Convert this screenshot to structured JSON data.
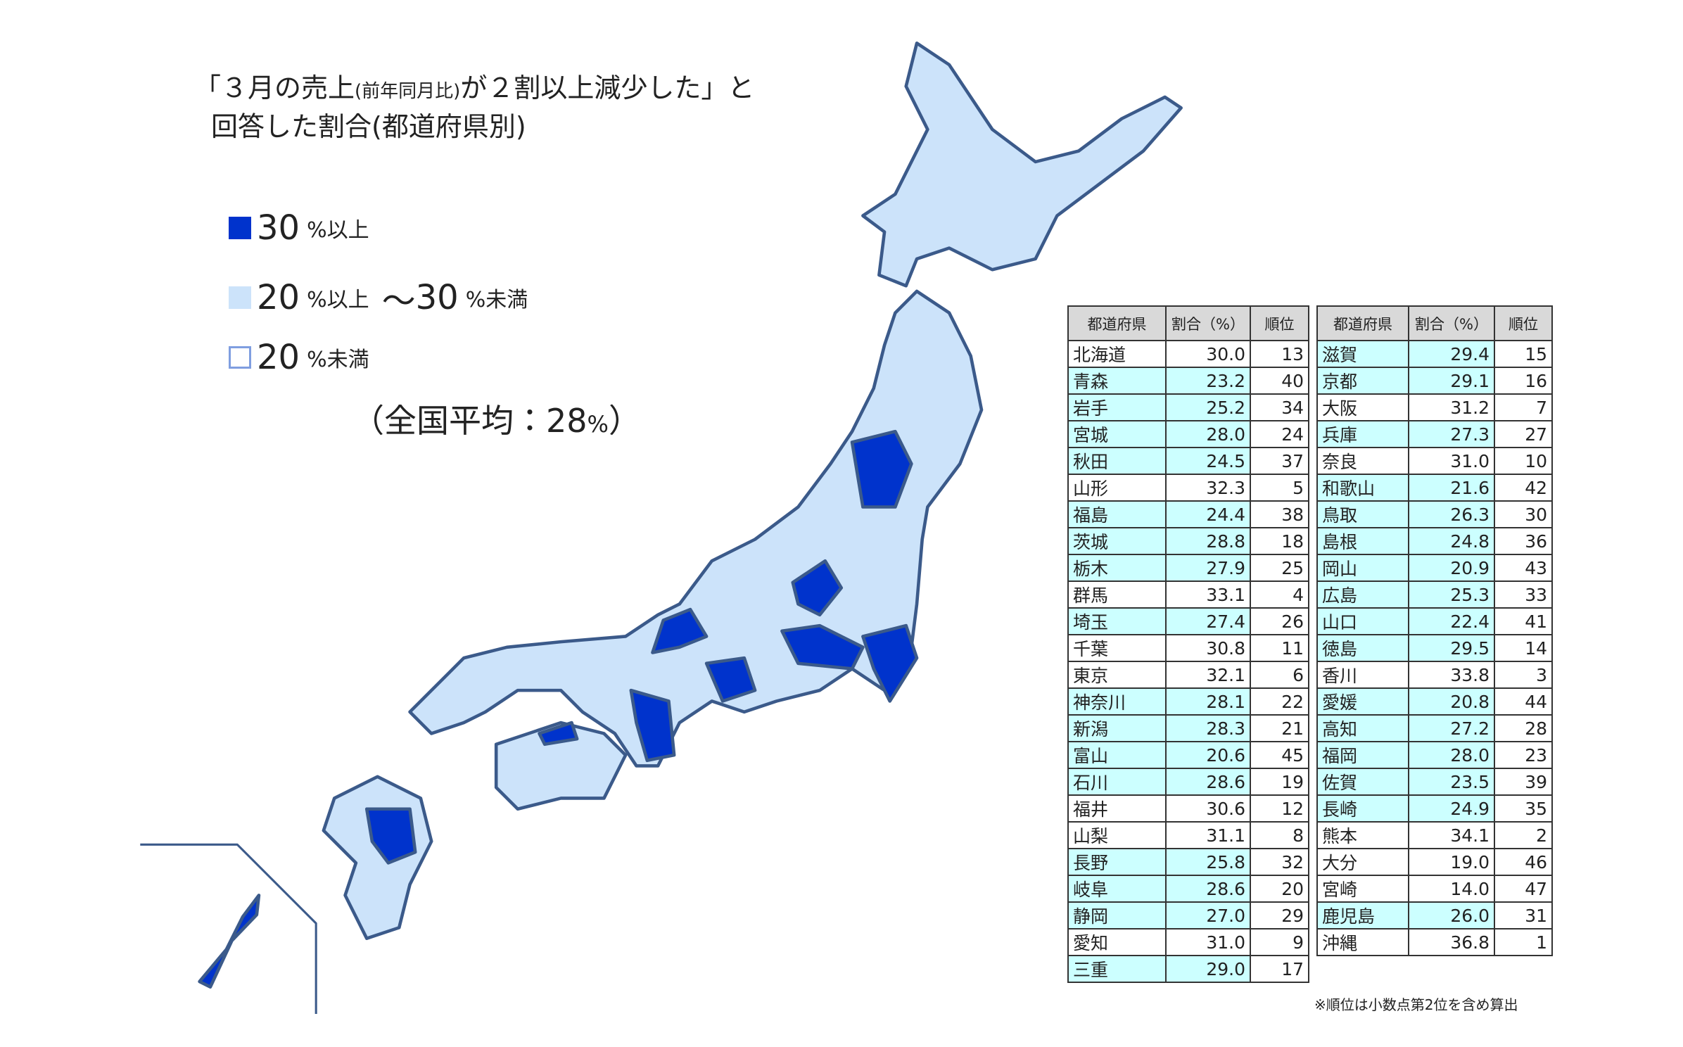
{
  "title": {
    "line1_a": "「３月の売上",
    "line1_small": "(前年同月比)",
    "line1_b": "が２割以上減少した」と",
    "line2": "回答した割合(都道府県別)"
  },
  "legend": [
    {
      "value": 30,
      "unit": "%以上",
      "color": "#0033cc"
    },
    {
      "value": 20,
      "unit": "%以上",
      "to": 30,
      "to_unit": "%未満",
      "color": "#cce3fa"
    },
    {
      "value": 20,
      "unit": "%未満",
      "color": "#ffffff"
    }
  ],
  "average": {
    "prefix": "（全国平均：",
    "value": 28,
    "unit": "%",
    "suffix": "）"
  },
  "highlight_color": "#ccffff",
  "tables": [
    {
      "header": [
        "都道府県",
        "割合（%）",
        "順位"
      ],
      "rows": [
        [
          "北海道",
          "30.0",
          13
        ],
        [
          "青森",
          "23.2",
          40
        ],
        [
          "岩手",
          "25.2",
          34
        ],
        [
          "宮城",
          "28.0",
          24
        ],
        [
          "秋田",
          "24.5",
          37
        ],
        [
          "山形",
          "32.3",
          5
        ],
        [
          "福島",
          "24.4",
          38
        ],
        [
          "茨城",
          "28.8",
          18
        ],
        [
          "栃木",
          "27.9",
          25
        ],
        [
          "群馬",
          "33.1",
          4
        ],
        [
          "埼玉",
          "27.4",
          26
        ],
        [
          "千葉",
          "30.8",
          11
        ],
        [
          "東京",
          "32.1",
          6
        ],
        [
          "神奈川",
          "28.1",
          22
        ],
        [
          "新潟",
          "28.3",
          21
        ],
        [
          "富山",
          "20.6",
          45
        ],
        [
          "石川",
          "28.6",
          19
        ],
        [
          "福井",
          "30.6",
          12
        ],
        [
          "山梨",
          "31.1",
          8
        ],
        [
          "長野",
          "25.8",
          32
        ],
        [
          "岐阜",
          "28.6",
          20
        ],
        [
          "静岡",
          "27.0",
          29
        ],
        [
          "愛知",
          "31.0",
          9
        ],
        [
          "三重",
          "29.0",
          17
        ]
      ]
    },
    {
      "header": [
        "都道府県",
        "割合（%）",
        "順位"
      ],
      "rows": [
        [
          "滋賀",
          "29.4",
          15
        ],
        [
          "京都",
          "29.1",
          16
        ],
        [
          "大阪",
          "31.2",
          7
        ],
        [
          "兵庫",
          "27.3",
          27
        ],
        [
          "奈良",
          "31.0",
          10
        ],
        [
          "和歌山",
          "21.6",
          42
        ],
        [
          "鳥取",
          "26.3",
          30
        ],
        [
          "島根",
          "24.8",
          36
        ],
        [
          "岡山",
          "20.9",
          43
        ],
        [
          "広島",
          "25.3",
          33
        ],
        [
          "山口",
          "22.4",
          41
        ],
        [
          "徳島",
          "29.5",
          14
        ],
        [
          "香川",
          "33.8",
          3
        ],
        [
          "愛媛",
          "20.8",
          44
        ],
        [
          "高知",
          "27.2",
          28
        ],
        [
          "福岡",
          "28.0",
          23
        ],
        [
          "佐賀",
          "23.5",
          39
        ],
        [
          "長崎",
          "24.9",
          35
        ],
        [
          "熊本",
          "34.1",
          2
        ],
        [
          "大分",
          "19.0",
          46
        ],
        [
          "宮崎",
          "14.0",
          47
        ],
        [
          "鹿児島",
          "26.0",
          31
        ],
        [
          "沖縄",
          "36.8",
          1
        ]
      ]
    }
  ],
  "footnote": "※順位は小数点第2位を含め算出"
}
